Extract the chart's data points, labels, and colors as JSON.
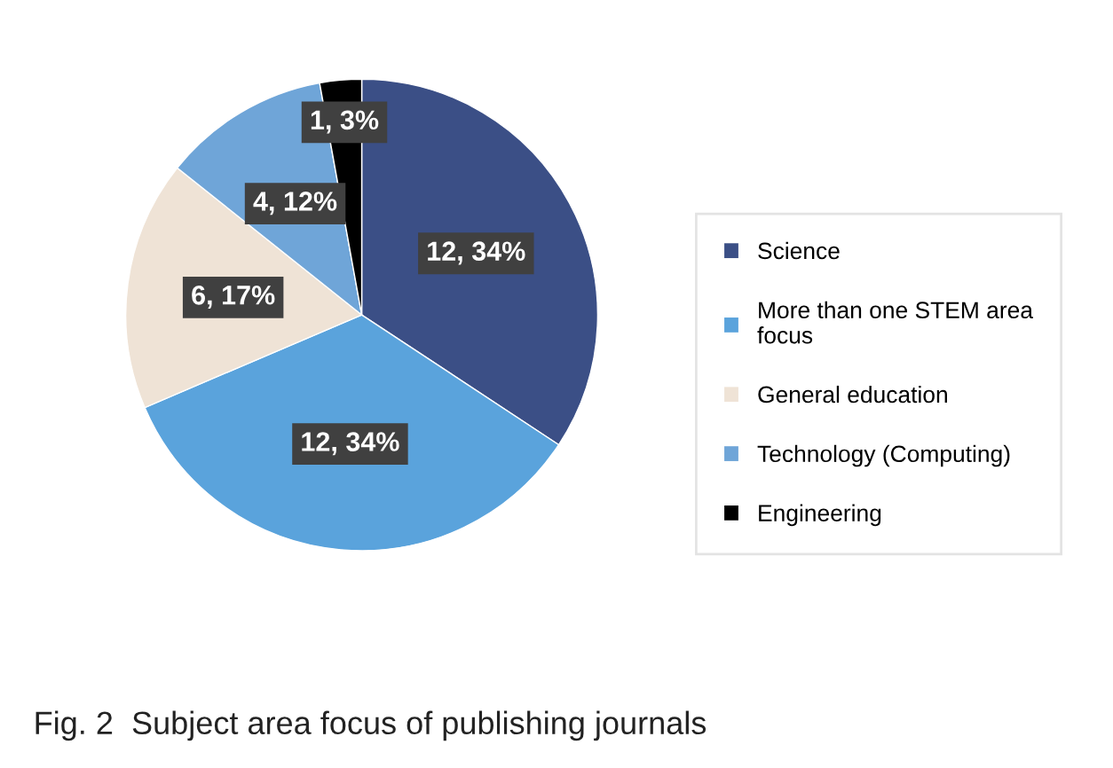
{
  "chart_data": {
    "type": "pie",
    "title": "Fig. 2  Subject area focus of publishing journals",
    "categories": [
      "Science",
      "More than one STEM area focus",
      "General education",
      "Technology (Computing)",
      "Engineering"
    ],
    "values": [
      12,
      12,
      6,
      4,
      1
    ],
    "value_labels": [
      "12, 34%",
      "12, 34%",
      "6, 17%",
      "4, 12%",
      "1, 3%"
    ],
    "colors": [
      "#3b4f86",
      "#5aa3dc",
      "#efe3d6",
      "#6fa5d8",
      "#000000"
    ],
    "legend": "right"
  }
}
